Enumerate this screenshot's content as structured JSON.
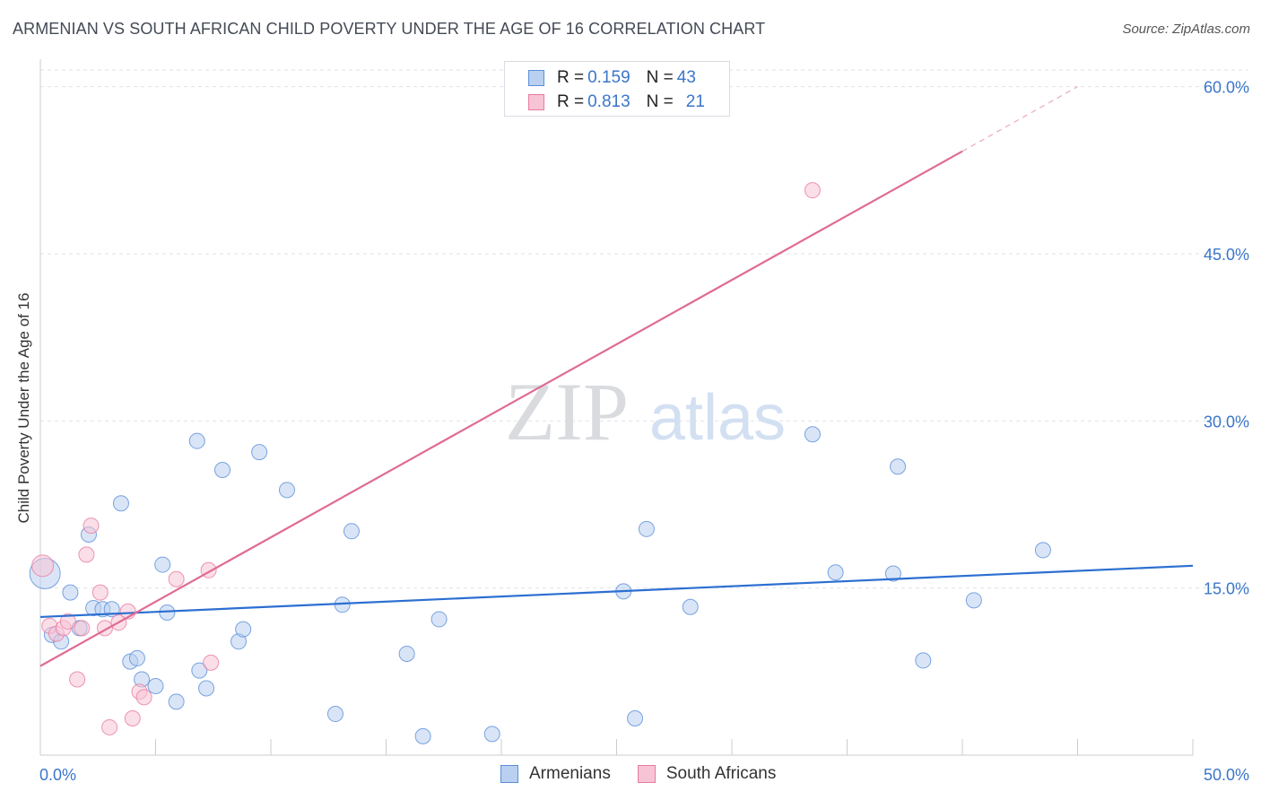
{
  "title": "ARMENIAN VS SOUTH AFRICAN CHILD POVERTY UNDER THE AGE OF 16 CORRELATION CHART",
  "source": "Source: ZipAtlas.com",
  "watermark": {
    "zip": "ZIP",
    "atlas": "atlas"
  },
  "legend": {
    "rows": [
      {
        "r_label": "R = ",
        "r_value": "0.159",
        "n_label": "N = ",
        "n_value": "43"
      },
      {
        "r_label": "R = ",
        "r_value": "0.813",
        "n_label": "N = ",
        "n_value": "21"
      }
    ]
  },
  "chart_data": {
    "type": "scatter",
    "title": "ARMENIAN VS SOUTH AFRICAN CHILD POVERTY UNDER THE AGE OF 16 CORRELATION CHART",
    "xlabel": "",
    "ylabel": "Child Poverty Under the Age of 16",
    "xlim": [
      0,
      50
    ],
    "ylim": [
      0,
      61.5
    ],
    "x_ticks": [
      0,
      5,
      10,
      15,
      20,
      25,
      30,
      35,
      40,
      45,
      50
    ],
    "x_tick_labels": [
      {
        "value": 0,
        "label": "0.0%"
      },
      {
        "value": 50,
        "label": "50.0%"
      }
    ],
    "y_ticks": [
      15,
      30,
      45,
      60
    ],
    "y_tick_labels": [
      "15.0%",
      "30.0%",
      "45.0%",
      "60.0%"
    ],
    "grid": true,
    "series": [
      {
        "name": "Armenians",
        "color": "#5a8fd8",
        "fill": "#b9d0f0",
        "points": [
          [
            0.2,
            16.3
          ],
          [
            0.5,
            10.8
          ],
          [
            0.9,
            10.2
          ],
          [
            1.3,
            14.6
          ],
          [
            1.7,
            11.4
          ],
          [
            2.1,
            19.8
          ],
          [
            2.3,
            13.2
          ],
          [
            2.7,
            13.1
          ],
          [
            3.1,
            13.1
          ],
          [
            3.5,
            22.6
          ],
          [
            3.9,
            8.4
          ],
          [
            4.2,
            8.7
          ],
          [
            4.4,
            6.8
          ],
          [
            5.0,
            6.2
          ],
          [
            5.3,
            17.1
          ],
          [
            5.5,
            12.8
          ],
          [
            5.9,
            4.8
          ],
          [
            6.8,
            28.2
          ],
          [
            6.9,
            7.6
          ],
          [
            7.2,
            6.0
          ],
          [
            7.9,
            25.6
          ],
          [
            8.6,
            10.2
          ],
          [
            8.8,
            11.3
          ],
          [
            9.5,
            27.2
          ],
          [
            10.7,
            23.8
          ],
          [
            12.8,
            3.7
          ],
          [
            13.1,
            13.5
          ],
          [
            13.5,
            20.1
          ],
          [
            15.9,
            9.1
          ],
          [
            16.6,
            1.7
          ],
          [
            17.3,
            12.2
          ],
          [
            19.6,
            1.9
          ],
          [
            25.3,
            14.7
          ],
          [
            25.8,
            3.3
          ],
          [
            26.3,
            20.3
          ],
          [
            28.2,
            13.3
          ],
          [
            33.5,
            28.8
          ],
          [
            34.5,
            16.4
          ],
          [
            37.0,
            16.3
          ],
          [
            37.2,
            25.9
          ],
          [
            38.3,
            8.5
          ],
          [
            40.5,
            13.9
          ],
          [
            43.5,
            18.4
          ]
        ],
        "trend": {
          "x0": 0,
          "y0": 12.4,
          "x1": 50,
          "y1": 17.0
        }
      },
      {
        "name": "South Africans",
        "color": "#e87aa0",
        "fill": "#f7c4d6",
        "points": [
          [
            0.1,
            17.0
          ],
          [
            0.4,
            11.6
          ],
          [
            0.7,
            10.9
          ],
          [
            1.0,
            11.4
          ],
          [
            1.2,
            12.0
          ],
          [
            1.6,
            6.8
          ],
          [
            1.8,
            11.4
          ],
          [
            2.0,
            18.0
          ],
          [
            2.2,
            20.6
          ],
          [
            2.6,
            14.6
          ],
          [
            2.8,
            11.4
          ],
          [
            3.0,
            2.5
          ],
          [
            3.4,
            11.9
          ],
          [
            3.8,
            12.9
          ],
          [
            4.0,
            3.3
          ],
          [
            4.3,
            5.7
          ],
          [
            4.5,
            5.2
          ],
          [
            5.9,
            15.8
          ],
          [
            7.3,
            16.6
          ],
          [
            7.4,
            8.3
          ],
          [
            33.5,
            50.7
          ]
        ],
        "trend": {
          "x0": 0,
          "y0": 8.0,
          "x1": 40,
          "y1": 54.2
        },
        "trend_dashed_extension": {
          "x0": 40,
          "y0": 54.2,
          "x1": 45,
          "y1": 60.0
        }
      }
    ]
  },
  "bottom_legend": [
    {
      "label": "Armenians"
    },
    {
      "label": "South Africans"
    }
  ]
}
